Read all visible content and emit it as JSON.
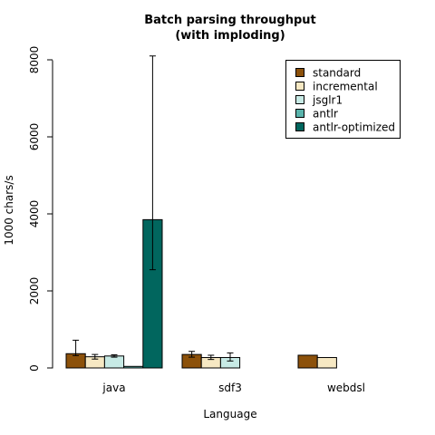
{
  "chart_data": {
    "type": "bar",
    "title": "Batch parsing throughput",
    "subtitle": "(with imploding)",
    "xlabel": "Language",
    "ylabel": "1000 chars/s",
    "ylim": [
      0,
      8000
    ],
    "yticks": [
      "0",
      "2000",
      "4000",
      "6000",
      "8000"
    ],
    "categories": [
      "java",
      "sdf3",
      "webdsl"
    ],
    "legend_position": "top-right",
    "series": [
      {
        "name": "standard",
        "color": "#8c510a",
        "values": [
          370,
          350,
          330
        ],
        "err_low": [
          320,
          280,
          130
        ],
        "err_high": [
          720,
          430,
          130
        ]
      },
      {
        "name": "incremental",
        "color": "#f6e8c3",
        "values": [
          290,
          270,
          270
        ],
        "err_low": [
          230,
          220,
          100
        ],
        "err_high": [
          350,
          330,
          100
        ]
      },
      {
        "name": "jsglr1",
        "color": "#c7eae5",
        "values": [
          310,
          270,
          null
        ],
        "err_low": [
          280,
          180,
          null
        ],
        "err_high": [
          340,
          390,
          null
        ]
      },
      {
        "name": "antlr",
        "color": "#5ab4ac",
        "values": [
          40,
          null,
          null
        ],
        "err_low": [
          40,
          null,
          null
        ],
        "err_high": [
          40,
          null,
          null
        ]
      },
      {
        "name": "antlr-optimized",
        "color": "#01665e",
        "values": [
          3850,
          null,
          null
        ],
        "err_low": [
          2550,
          null,
          null
        ],
        "err_high": [
          8100,
          null,
          null
        ]
      }
    ]
  }
}
